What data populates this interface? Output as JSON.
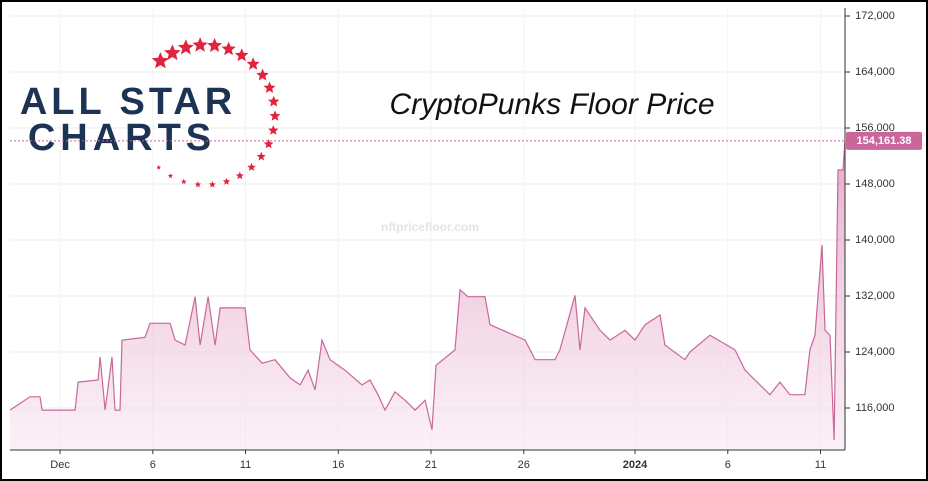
{
  "chart_data": {
    "type": "area",
    "title": "CryptoPunks Floor Price",
    "brand": [
      "ALL STAR",
      "CHARTS"
    ],
    "watermark": "nftpricefloor.com",
    "x": [
      -2.7,
      -1.62,
      -1.08,
      -0.97,
      0.81,
      0.97,
      2.05,
      2.16,
      2.43,
      2.8,
      2.96,
      3.23,
      3.34,
      4.58,
      4.85,
      5.93,
      6.2,
      6.74,
      7.28,
      7.55,
      7.98,
      8.36,
      8.63,
      9.97,
      10.24,
      10.89,
      11.59,
      12.4,
      12.94,
      13.37,
      13.75,
      14.12,
      14.56,
      15.36,
      16.28,
      16.71,
      17.14,
      17.52,
      18.06,
      18.6,
      19.14,
      19.68,
      20.05,
      20.27,
      21.29,
      21.56,
      21.99,
      22.91,
      23.18,
      25.07,
      25.61,
      26.68,
      26.95,
      27.76,
      28.03,
      28.3,
      29.11,
      29.65,
      30.46,
      31.0,
      31.54,
      32.35,
      32.61,
      33.69,
      33.96,
      35.04,
      36.39,
      36.93,
      38.27,
      38.81,
      39.35,
      40.16,
      40.43,
      40.7,
      41.08,
      41.24,
      41.51,
      41.73,
      41.94,
      42.21,
      42.32
    ],
    "series": [
      {
        "name": "Floor Price",
        "color": "#c9679a",
        "values": [
          115700,
          117600,
          117600,
          115700,
          115700,
          119700,
          120000,
          123300,
          115700,
          123300,
          115700,
          115700,
          125700,
          126100,
          128100,
          128100,
          125700,
          125000,
          131900,
          125000,
          131900,
          125000,
          130300,
          130300,
          124300,
          122400,
          122900,
          120300,
          119300,
          121400,
          118600,
          125700,
          122900,
          121400,
          119300,
          120000,
          117900,
          115700,
          118300,
          117100,
          115700,
          117100,
          112900,
          122100,
          124300,
          132900,
          131900,
          131900,
          127900,
          125700,
          122900,
          122900,
          124300,
          132100,
          124300,
          130300,
          127100,
          125700,
          127100,
          125700,
          127900,
          129300,
          125000,
          122900,
          124000,
          126400,
          124300,
          121400,
          117900,
          119700,
          117900,
          117900,
          124300,
          126400,
          139300,
          127100,
          126400,
          111400,
          150000,
          150000,
          154161.38
        ]
      }
    ],
    "xlim": [
      -2.7,
      42.32
    ],
    "xticks": [
      {
        "value": 0,
        "label": "Dec"
      },
      {
        "value": 5,
        "label": "6"
      },
      {
        "value": 10,
        "label": "11"
      },
      {
        "value": 15,
        "label": "16"
      },
      {
        "value": 20,
        "label": "21"
      },
      {
        "value": 25,
        "label": "26"
      },
      {
        "value": 31,
        "label": "2024"
      },
      {
        "value": 36,
        "label": "6"
      },
      {
        "value": 41,
        "label": "11"
      }
    ],
    "ylim": [
      110000,
      173143
    ],
    "yticks": [
      {
        "value": 116000,
        "label": "116,000"
      },
      {
        "value": 124000,
        "label": "124,000"
      },
      {
        "value": 132000,
        "label": "132,000"
      },
      {
        "value": 140000,
        "label": "140,000"
      },
      {
        "value": 148000,
        "label": "148,000"
      },
      {
        "value": 156000,
        "label": "156,000"
      },
      {
        "value": 164000,
        "label": "164,000"
      },
      {
        "value": 172000,
        "label": "172,000"
      }
    ],
    "last_price": {
      "value": 154161.38,
      "label": "154,161.38"
    },
    "grid": true
  }
}
